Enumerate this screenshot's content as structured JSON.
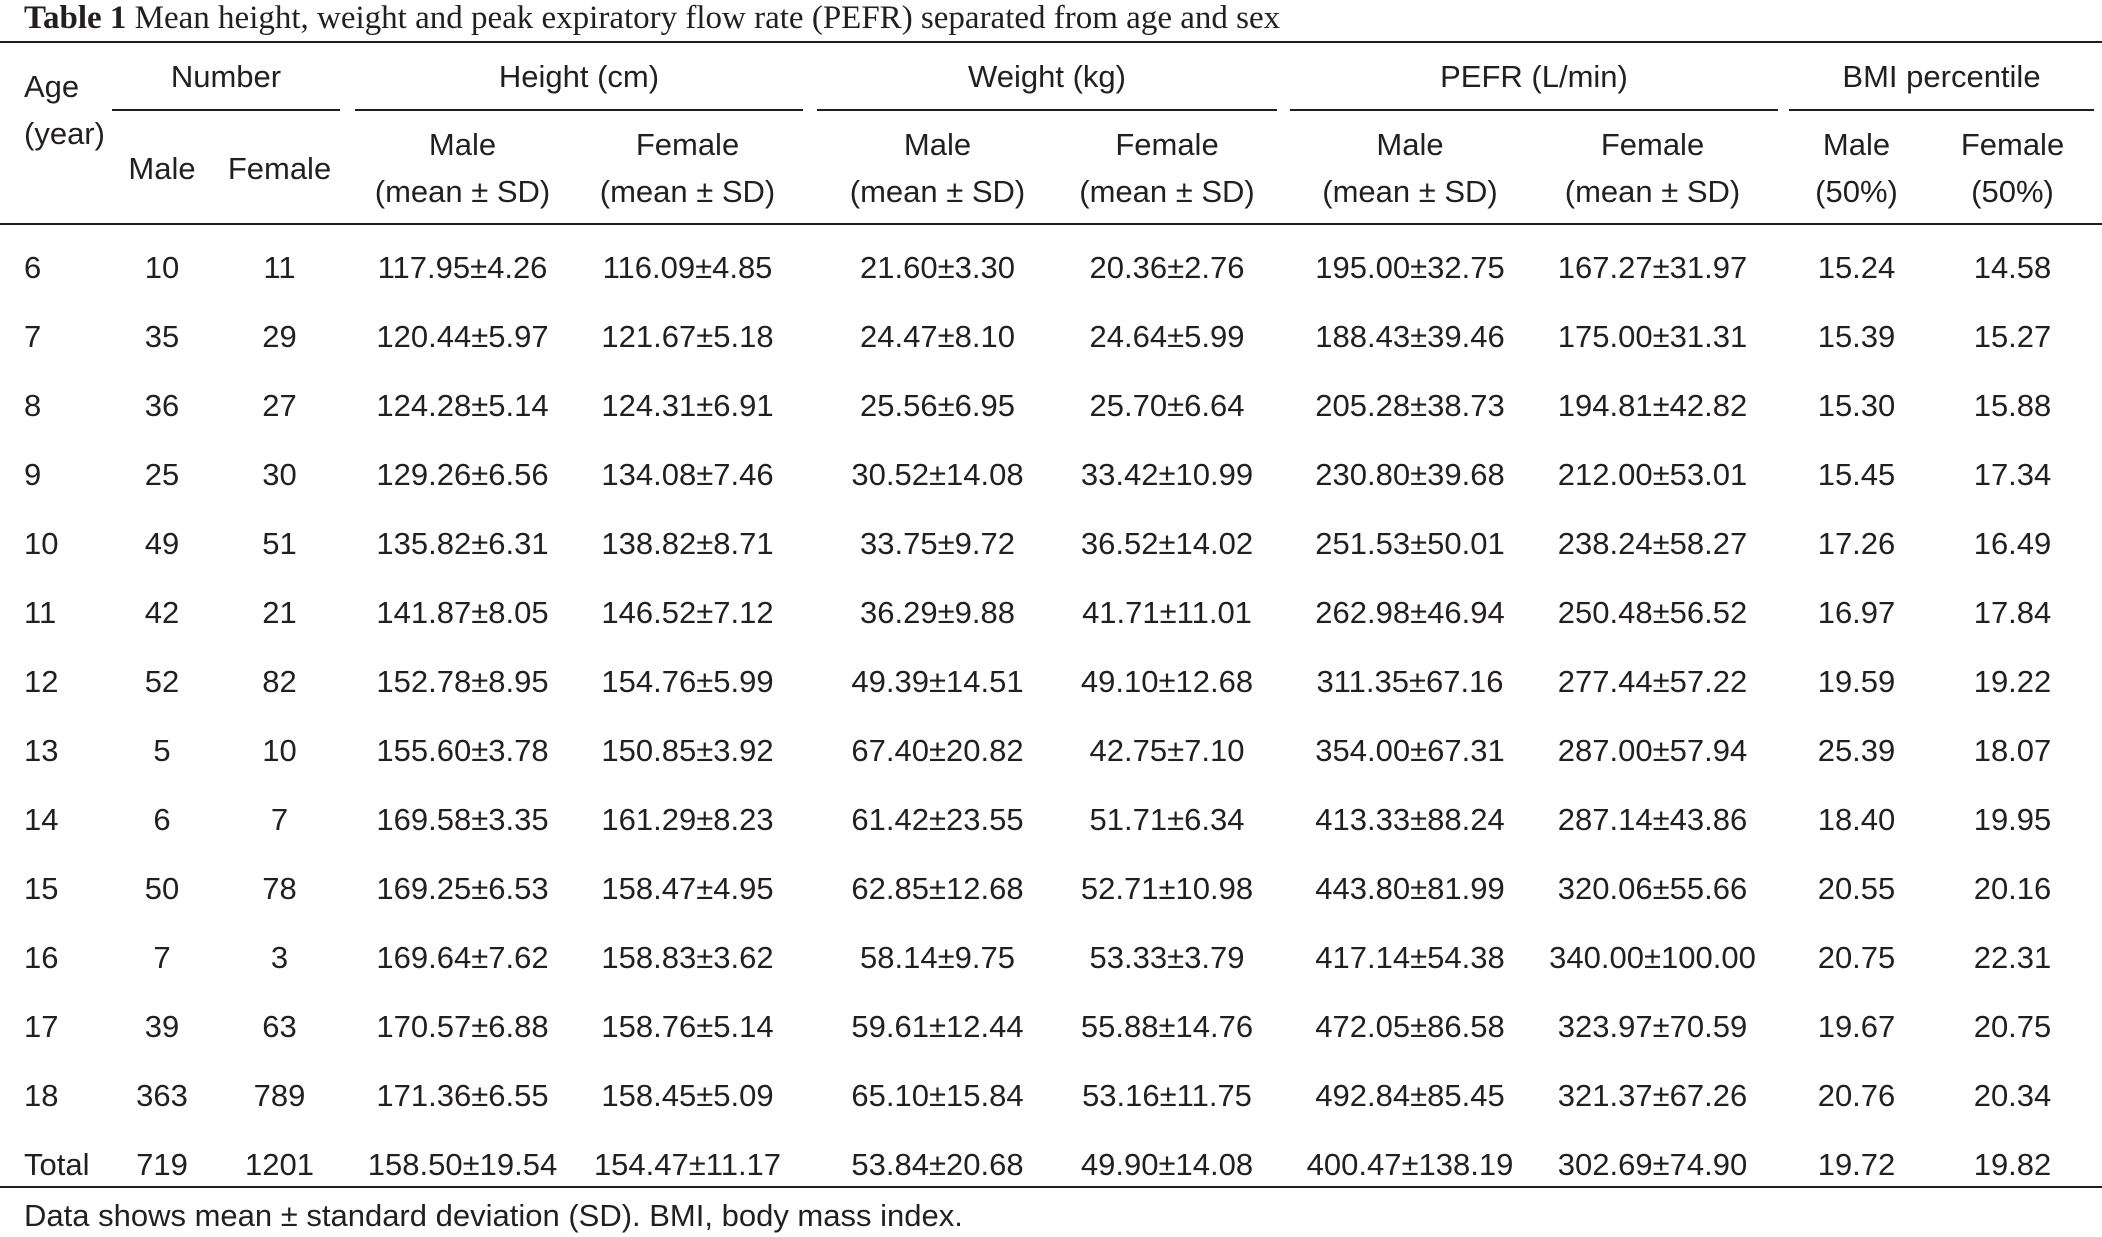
{
  "caption": {
    "label": "Table 1",
    "text": "Mean height, weight and peak expiratory flow rate (PEFR) separated from age and sex"
  },
  "header": {
    "age": [
      "Age",
      "(year)"
    ],
    "groups": [
      "Number",
      "Height (cm)",
      "Weight (kg)",
      "PEFR (L/min)",
      "BMI percentile"
    ],
    "number_sub": [
      "Male",
      "Female"
    ],
    "stat_sub": {
      "male": [
        "Male",
        "(mean ± SD)"
      ],
      "female": [
        "Female",
        "(mean ± SD)"
      ]
    },
    "bmi_sub": {
      "male": [
        "Male",
        "(50%)"
      ],
      "female": [
        "Female",
        "(50%)"
      ]
    }
  },
  "rows": [
    [
      "6",
      "10",
      "11",
      "117.95±4.26",
      "116.09±4.85",
      "21.60±3.30",
      "20.36±2.76",
      "195.00±32.75",
      "167.27±31.97",
      "15.24",
      "14.58"
    ],
    [
      "7",
      "35",
      "29",
      "120.44±5.97",
      "121.67±5.18",
      "24.47±8.10",
      "24.64±5.99",
      "188.43±39.46",
      "175.00±31.31",
      "15.39",
      "15.27"
    ],
    [
      "8",
      "36",
      "27",
      "124.28±5.14",
      "124.31±6.91",
      "25.56±6.95",
      "25.70±6.64",
      "205.28±38.73",
      "194.81±42.82",
      "15.30",
      "15.88"
    ],
    [
      "9",
      "25",
      "30",
      "129.26±6.56",
      "134.08±7.46",
      "30.52±14.08",
      "33.42±10.99",
      "230.80±39.68",
      "212.00±53.01",
      "15.45",
      "17.34"
    ],
    [
      "10",
      "49",
      "51",
      "135.82±6.31",
      "138.82±8.71",
      "33.75±9.72",
      "36.52±14.02",
      "251.53±50.01",
      "238.24±58.27",
      "17.26",
      "16.49"
    ],
    [
      "11",
      "42",
      "21",
      "141.87±8.05",
      "146.52±7.12",
      "36.29±9.88",
      "41.71±11.01",
      "262.98±46.94",
      "250.48±56.52",
      "16.97",
      "17.84"
    ],
    [
      "12",
      "52",
      "82",
      "152.78±8.95",
      "154.76±5.99",
      "49.39±14.51",
      "49.10±12.68",
      "311.35±67.16",
      "277.44±57.22",
      "19.59",
      "19.22"
    ],
    [
      "13",
      "5",
      "10",
      "155.60±3.78",
      "150.85±3.92",
      "67.40±20.82",
      "42.75±7.10",
      "354.00±67.31",
      "287.00±57.94",
      "25.39",
      "18.07"
    ],
    [
      "14",
      "6",
      "7",
      "169.58±3.35",
      "161.29±8.23",
      "61.42±23.55",
      "51.71±6.34",
      "413.33±88.24",
      "287.14±43.86",
      "18.40",
      "19.95"
    ],
    [
      "15",
      "50",
      "78",
      "169.25±6.53",
      "158.47±4.95",
      "62.85±12.68",
      "52.71±10.98",
      "443.80±81.99",
      "320.06±55.66",
      "20.55",
      "20.16"
    ],
    [
      "16",
      "7",
      "3",
      "169.64±7.62",
      "158.83±3.62",
      "58.14±9.75",
      "53.33±3.79",
      "417.14±54.38",
      "340.00±100.00",
      "20.75",
      "22.31"
    ],
    [
      "17",
      "39",
      "63",
      "170.57±6.88",
      "158.76±5.14",
      "59.61±12.44",
      "55.88±14.76",
      "472.05±86.58",
      "323.97±70.59",
      "19.67",
      "20.75"
    ],
    [
      "18",
      "363",
      "789",
      "171.36±6.55",
      "158.45±5.09",
      "65.10±15.84",
      "53.16±11.75",
      "492.84±85.45",
      "321.37±67.26",
      "20.76",
      "20.34"
    ],
    [
      "Total",
      "719",
      "1201",
      "158.50±19.54",
      "154.47±11.17",
      "53.84±20.68",
      "49.90±14.08",
      "400.47±138.19",
      "302.69±74.90",
      "19.72",
      "19.82"
    ]
  ],
  "footnote": "Data shows mean ± standard deviation (SD). BMI, body mass index."
}
